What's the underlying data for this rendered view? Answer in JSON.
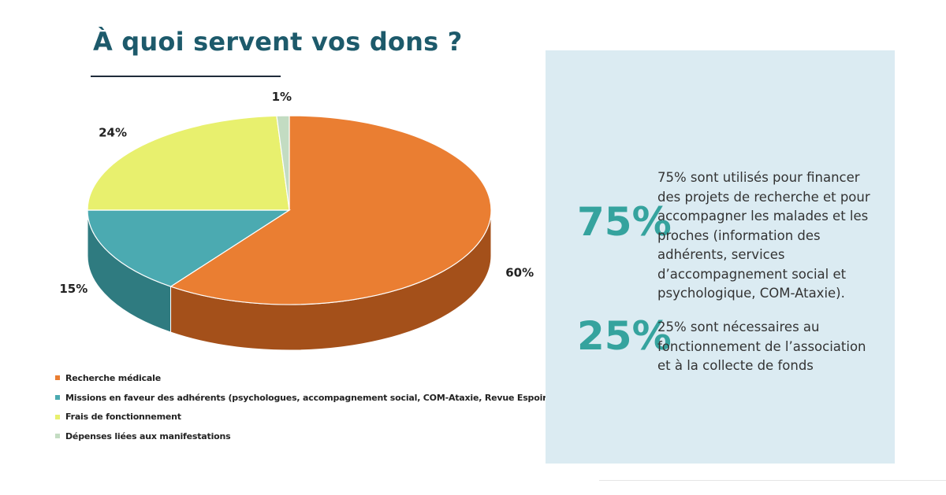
{
  "title": "À quoi servent vos dons ?",
  "chart_data": {
    "type": "pie",
    "slices": [
      {
        "label": "Recherche médicale",
        "value": 60,
        "data_label": "60%",
        "color": "#ea7e32",
        "side_color": "#a4501a"
      },
      {
        "label": "Missions en faveur des adhérents (psychologues, accompagnement social, COM-Ataxie, Revue Espoir ...)",
        "value": 15,
        "data_label": "15%",
        "color": "#4baab1",
        "side_color": "#2f7b80"
      },
      {
        "label": "Frais de fonctionnement",
        "value": 24,
        "data_label": "24%",
        "color": "#e8f06e",
        "side_color": "#b7bd48"
      },
      {
        "label": "Dépenses liées aux manifestations",
        "value": 1,
        "data_label": "1%",
        "color": "#c3dcc2",
        "side_color": "#93ab93"
      }
    ],
    "legend_position": "bottom-left"
  },
  "panel": {
    "stats": [
      {
        "big": "75%",
        "text": "75% sont utilisés pour financer des projets de recherche et pour accompagner les malades et les proches (information des adhérents, services d’accompagnement social et psychologique, COM-Ataxie)."
      },
      {
        "big": "25%",
        "text": "25% sont nécessaires au fonctionnement de l’association et à la collecte de fonds"
      }
    ],
    "colors": {
      "background": "#dbebf2",
      "accent": "#35a39e"
    }
  }
}
